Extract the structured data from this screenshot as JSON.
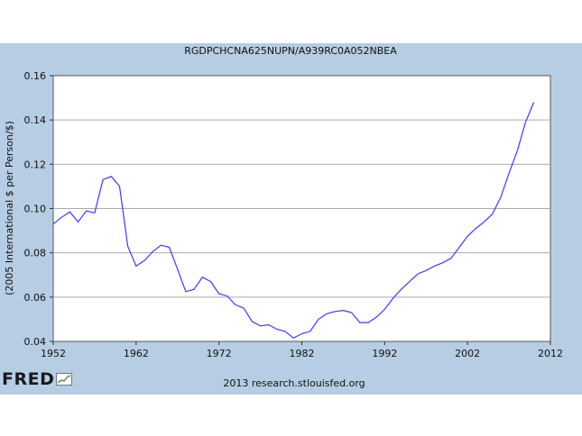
{
  "chart_data": {
    "type": "line",
    "title": "RGDPCHCNA625NUPN/A939RC0A052NBEA",
    "ylabel": "(2005 International $ per Person/$)",
    "xlabel": "",
    "xlim": [
      1952,
      2012
    ],
    "ylim": [
      0.04,
      0.16
    ],
    "xticks": [
      1952,
      1962,
      1972,
      1982,
      1992,
      2002,
      2012
    ],
    "xtick_labels": [
      "1952",
      "1962",
      "1972",
      "1982",
      "1992",
      "2002",
      "2012"
    ],
    "yticks": [
      0.04,
      0.06,
      0.08,
      0.1,
      0.12,
      0.14,
      0.16
    ],
    "ytick_labels": [
      "0.04",
      "0.06",
      "0.08",
      "0.10",
      "0.12",
      "0.14",
      "0.16"
    ],
    "grid": "horizontal",
    "line_color": "#3a3aff",
    "x": [
      1952,
      1953,
      1954,
      1955,
      1956,
      1957,
      1958,
      1959,
      1960,
      1961,
      1962,
      1963,
      1964,
      1965,
      1966,
      1967,
      1968,
      1969,
      1970,
      1971,
      1972,
      1973,
      1974,
      1975,
      1976,
      1977,
      1978,
      1979,
      1980,
      1981,
      1982,
      1983,
      1984,
      1985,
      1986,
      1987,
      1988,
      1989,
      1990,
      1991,
      1992,
      1993,
      1994,
      1995,
      1996,
      1997,
      1998,
      1999,
      2000,
      2001,
      2002,
      2003,
      2004,
      2005,
      2006,
      2007,
      2008,
      2009,
      2010
    ],
    "values": [
      0.093,
      0.096,
      0.0985,
      0.094,
      0.099,
      0.098,
      0.113,
      0.1145,
      0.11,
      0.083,
      0.074,
      0.0765,
      0.0805,
      0.0835,
      0.0825,
      0.0725,
      0.0625,
      0.0635,
      0.069,
      0.067,
      0.0615,
      0.0605,
      0.0565,
      0.055,
      0.049,
      0.047,
      0.0475,
      0.0455,
      0.0445,
      0.0415,
      0.0435,
      0.0445,
      0.05,
      0.0525,
      0.0535,
      0.054,
      0.053,
      0.0485,
      0.0485,
      0.051,
      0.0545,
      0.0595,
      0.0635,
      0.067,
      0.0705,
      0.072,
      0.074,
      0.0755,
      0.0775,
      0.0825,
      0.0875,
      0.091,
      0.094,
      0.0975,
      0.105,
      0.116,
      0.126,
      0.139,
      0.148
    ]
  },
  "credit": "2013 research.stlouisfed.org",
  "logo": {
    "text": "FRED"
  }
}
